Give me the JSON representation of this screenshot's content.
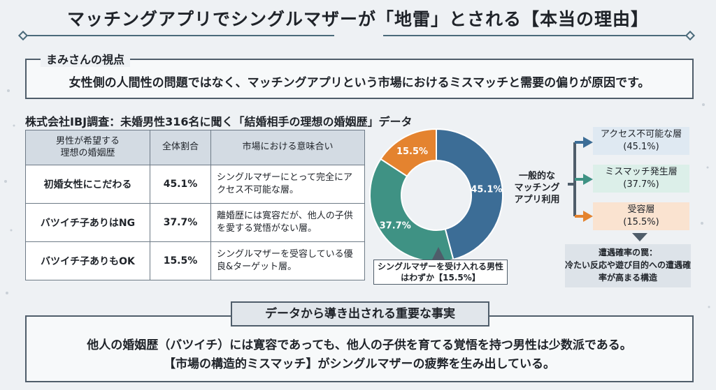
{
  "title": "マッチングアプリでシングルマザーが「地雷」とされる【本当の理由】",
  "pov": {
    "label": "まみさんの視点",
    "text": "女性側の人間性の問題ではなく、マッチングアプリという市場におけるミスマッチと需要の偏りが原因です。"
  },
  "survey_title": "株式会社IBJ調査：未婚男性316名に聞く「結婚相手の理想の婚姻歴」データ",
  "table": {
    "headers": [
      "男性が希望する\n理想の婚姻歴",
      "全体割合",
      "市場における意味合い"
    ],
    "rows": [
      {
        "category": "初婚女性にこだわる",
        "share": "45.1%",
        "meaning": "シングルマザーにとって完全にアクセス不可能な層。"
      },
      {
        "category": "バツイチ子ありはNG",
        "share": "37.7%",
        "meaning": "離婚歴には寛容だが、他人の子供を愛する覚悟がない層。"
      },
      {
        "category": "バツイチ子ありもOK",
        "share": "15.5%",
        "meaning": "シングルマザーを受容している優良&ターゲット層。"
      }
    ]
  },
  "chart_data": {
    "type": "pie",
    "donut": true,
    "categories": [
      "初婚女性にこだわる",
      "バツイチ子ありはNG",
      "バツイチ子ありもOK"
    ],
    "values": [
      45.1,
      37.7,
      15.5
    ],
    "labels": [
      "45.1%",
      "37.7%",
      "15.5%"
    ],
    "colors": [
      "#3c6d96",
      "#3f9284",
      "#e4832f"
    ]
  },
  "callout": "シングルマザーを受け入れる男性はわずか【15.5%】",
  "flow": {
    "general": "一般的な\nマッチング\nアプリ利用",
    "layers": [
      {
        "name": "アクセス不可能な層",
        "pct": "(45.1%)"
      },
      {
        "name": "ミスマッチ発生層",
        "pct": "(37.7%)"
      },
      {
        "name": "受容層",
        "pct": "(15.5%)"
      }
    ],
    "trap": "遭遇確率の罠：\n冷たい反応や遊び目的への遭遇確率が高まる構造"
  },
  "facts": {
    "label": "データから導き出される重要な事実",
    "line1": "他人の婚姻歴（バツイチ）には寛容であっても、他人の子供を育てる覚悟を持つ男性は少数派である。",
    "line2": "【市場の構造的ミスマッチ】がシングルマザーの疲弊を生み出している。"
  },
  "colors": {
    "blue": "#3c6d96",
    "green": "#3f9284",
    "orange": "#e4832f",
    "border": "#4f5d6a"
  }
}
